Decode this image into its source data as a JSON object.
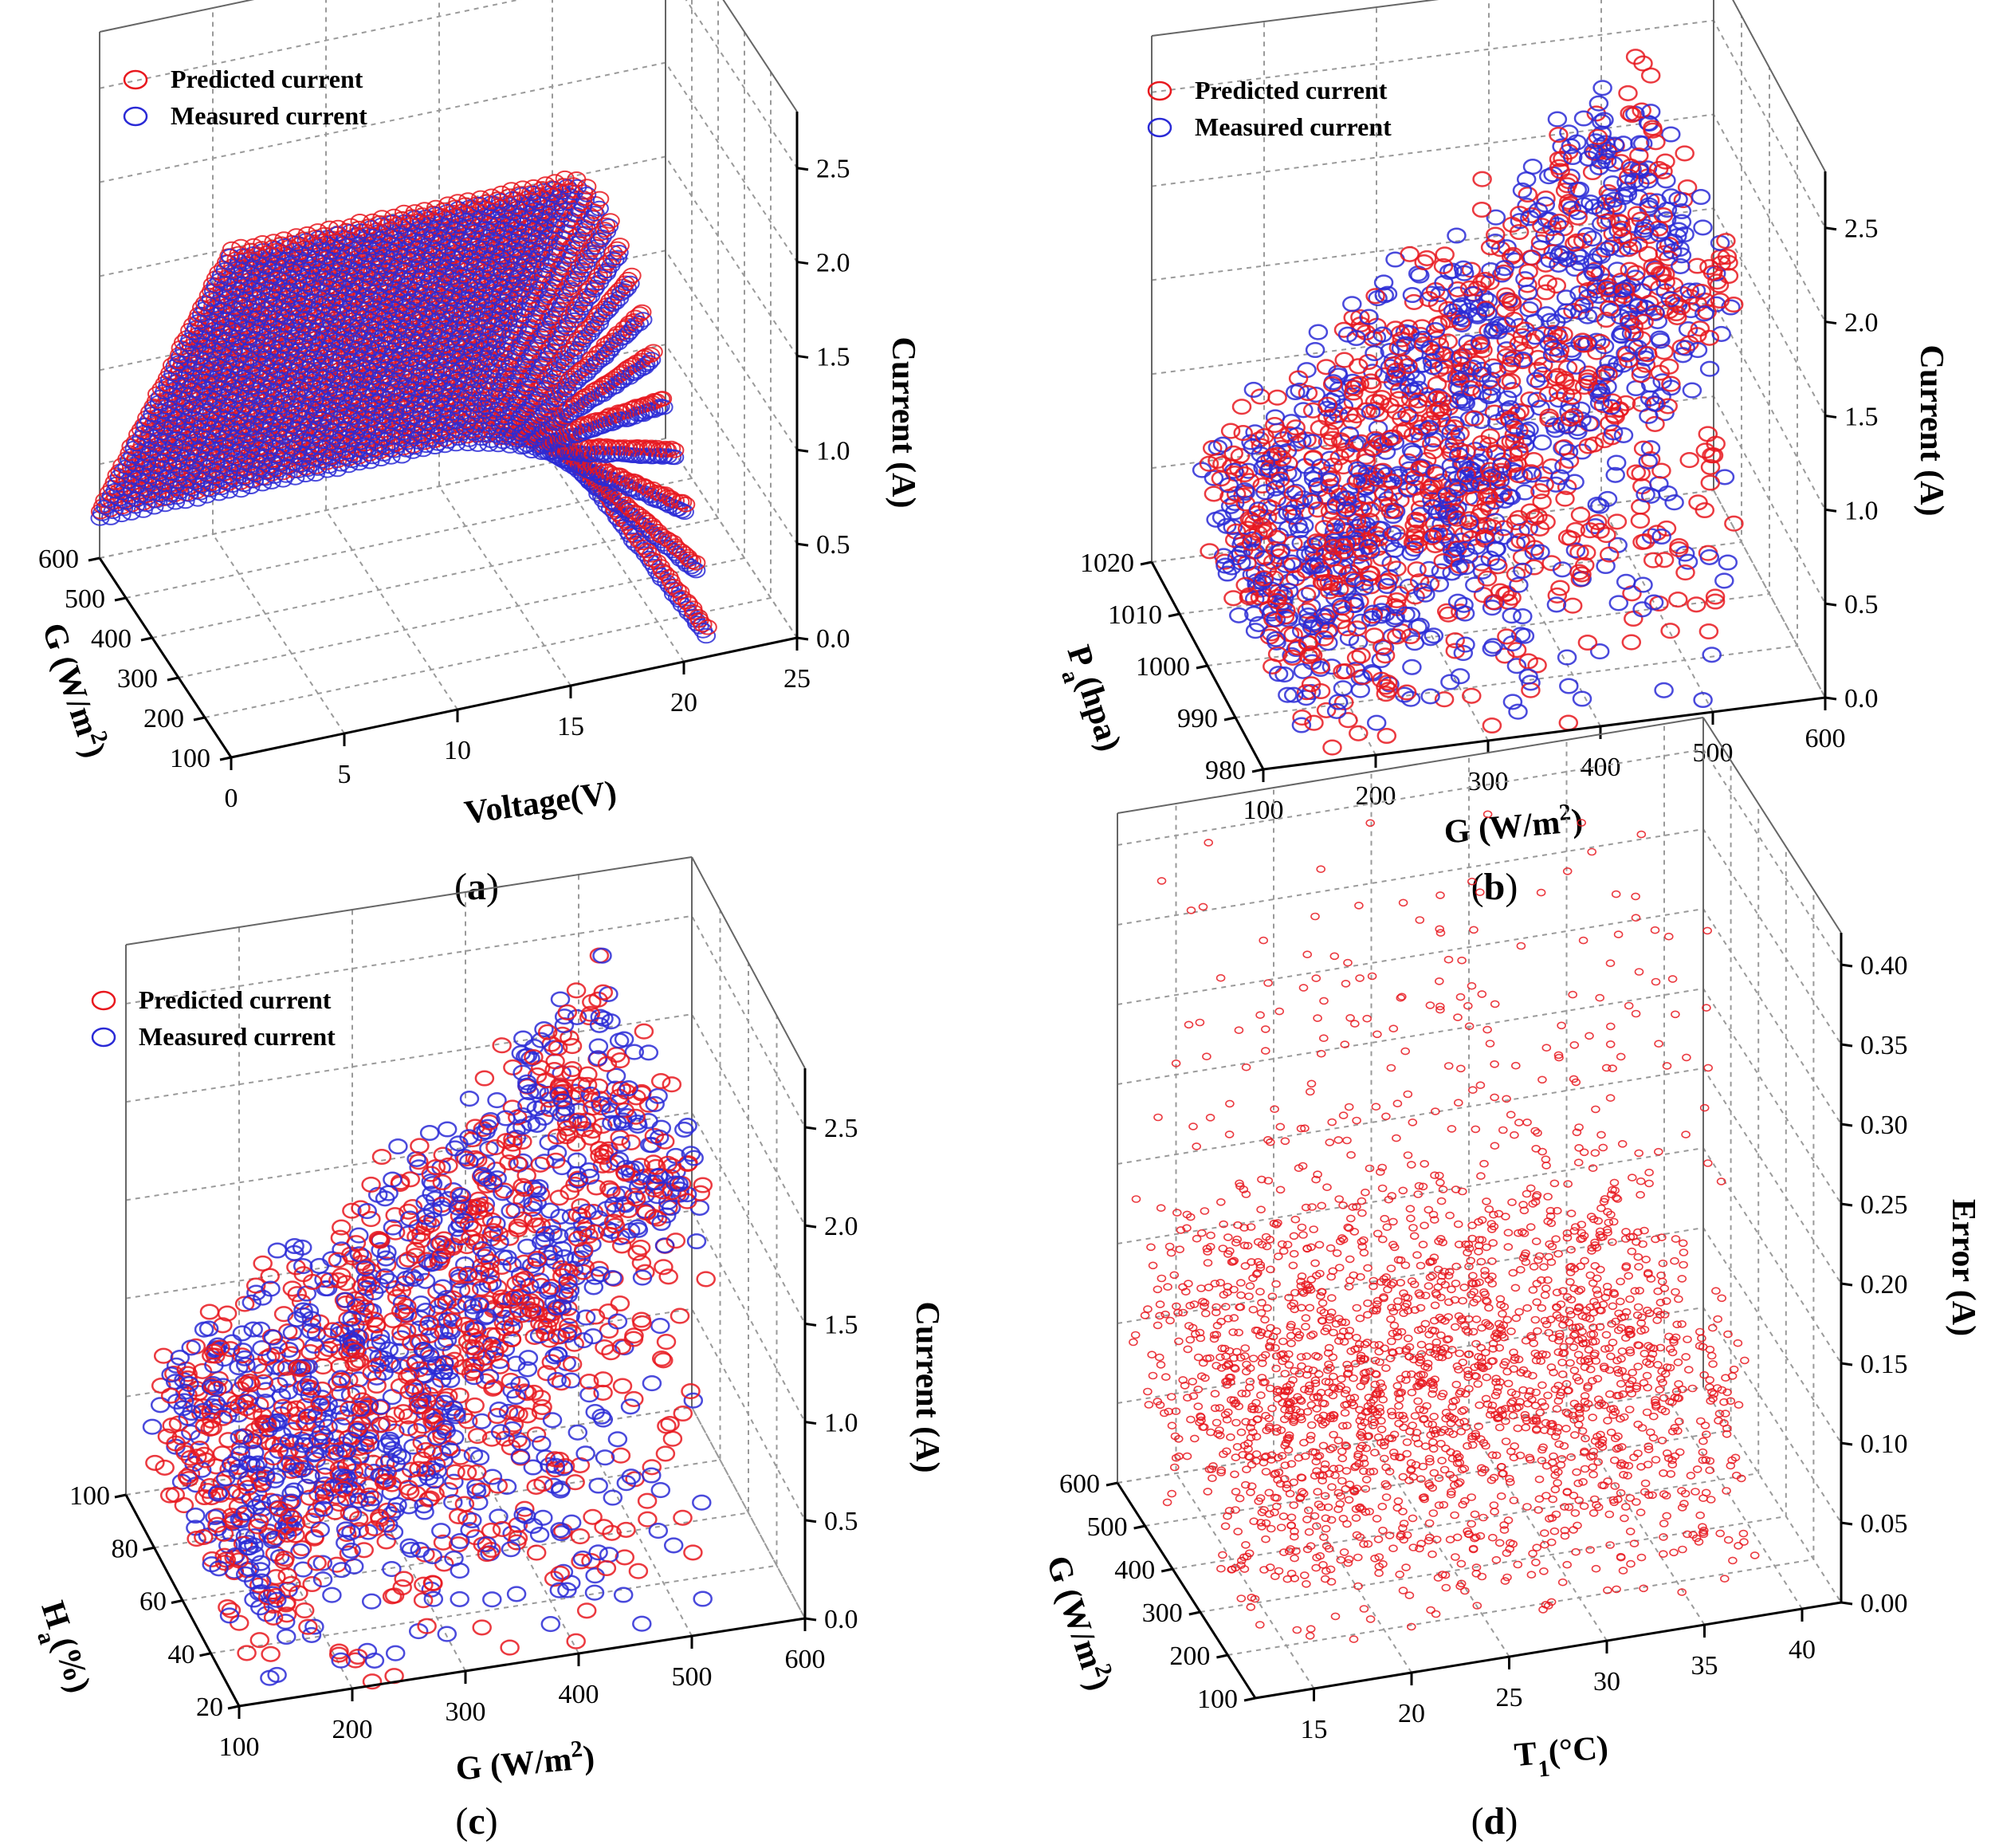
{
  "figure": {
    "colors": {
      "predicted": "#e8181e",
      "measured": "#2a2ad6",
      "axis": "#000000",
      "grid": "#9a9a9a"
    }
  },
  "chart_data": [
    {
      "type": "scatter",
      "subtype": "3d-scatter",
      "panel": "a",
      "caption_letter": "a",
      "x": {
        "label": "Voltage(V)",
        "range": [
          0,
          25
        ],
        "ticks": [
          "0",
          "5",
          "10",
          "15",
          "20",
          "25"
        ]
      },
      "y": {
        "label": "G (W/m",
        "label_sup": "2",
        "label_tail": ")",
        "range": [
          100,
          600
        ],
        "ticks": [
          "100",
          "200",
          "300",
          "400",
          "500",
          "600"
        ]
      },
      "z": {
        "label": "Current (A)",
        "range": [
          0,
          2.8
        ],
        "ticks": [
          "0.0",
          "0.5",
          "1.0",
          "1.5",
          "2.0",
          "2.5"
        ]
      },
      "legend": [
        "Predicted current",
        "Measured current"
      ],
      "series": [
        {
          "name": "Predicted current",
          "description_values": {
            "isc_at_100": 0.25,
            "isc_at_600": 2.7,
            "knee_voltage": 16,
            "voc": 21
          }
        },
        {
          "name": "Measured current",
          "description_values": {
            "isc_at_100": 0.22,
            "isc_at_600": 2.6,
            "knee_voltage": 16,
            "voc": 21
          }
        }
      ]
    },
    {
      "type": "scatter",
      "subtype": "3d-scatter",
      "panel": "b",
      "caption_letter": "b",
      "x": {
        "label": "G (W/m",
        "label_sup": "2",
        "label_tail": ")",
        "range": [
          100,
          600
        ],
        "ticks": [
          "100",
          "200",
          "300",
          "400",
          "500",
          "600"
        ]
      },
      "y": {
        "label": "P",
        "label_sub": "a",
        "label_tail": "(hpa)",
        "range": [
          980,
          1020
        ],
        "ticks": [
          "980",
          "990",
          "1000",
          "1010",
          "1020"
        ]
      },
      "z": {
        "label": "Current (A)",
        "range": [
          0,
          2.8
        ],
        "ticks": [
          "0.0",
          "0.5",
          "1.0",
          "1.5",
          "2.0",
          "2.5"
        ]
      },
      "legend": [
        "Predicted current",
        "Measured current"
      ],
      "series": [
        {
          "name": "Predicted current",
          "description_values": {
            "max_current": 2.8,
            "min_current": 0.0
          }
        },
        {
          "name": "Measured current",
          "description_values": {
            "max_current": 2.75,
            "min_current": 0.0
          }
        }
      ]
    },
    {
      "type": "scatter",
      "subtype": "3d-scatter",
      "panel": "c",
      "caption_letter": "c",
      "x": {
        "label": "G (W/m",
        "label_sup": "2",
        "label_tail": ")",
        "range": [
          100,
          600
        ],
        "ticks": [
          "100",
          "200",
          "300",
          "400",
          "500",
          "600"
        ]
      },
      "y": {
        "label": "H",
        "label_sub": "a",
        "label_tail": "(%)",
        "range": [
          20,
          100
        ],
        "ticks": [
          "20",
          "40",
          "60",
          "80",
          "100"
        ]
      },
      "z": {
        "label": "Current (A)",
        "range": [
          0,
          2.8
        ],
        "ticks": [
          "0.0",
          "0.5",
          "1.0",
          "1.5",
          "2.0",
          "2.5"
        ]
      },
      "legend": [
        "Predicted current",
        "Measured current"
      ],
      "series": [
        {
          "name": "Predicted current",
          "description_values": {
            "max_current": 2.8,
            "min_current": 0.0
          }
        },
        {
          "name": "Measured current",
          "description_values": {
            "max_current": 2.75,
            "min_current": 0.0
          }
        }
      ]
    },
    {
      "type": "scatter",
      "subtype": "3d-scatter",
      "panel": "d",
      "caption_letter": "d",
      "x": {
        "label": "T",
        "label_sub": "1",
        "label_tail": "(°C)",
        "range": [
          12,
          42
        ],
        "ticks": [
          "15",
          "20",
          "25",
          "30",
          "35",
          "40"
        ]
      },
      "y": {
        "label": "G (W/m",
        "label_sup": "2",
        "label_tail": ")",
        "range": [
          100,
          600
        ],
        "ticks": [
          "100",
          "200",
          "300",
          "400",
          "500",
          "600"
        ]
      },
      "z": {
        "label": "Error (A)",
        "range": [
          0,
          0.42
        ],
        "ticks": [
          "0.00",
          "0.05",
          "0.10",
          "0.15",
          "0.20",
          "0.25",
          "0.30",
          "0.35",
          "0.40"
        ]
      },
      "legend": [],
      "series": [
        {
          "name": "Error",
          "description_values": {
            "max_error": 0.4,
            "typical_error": 0.1
          }
        }
      ]
    }
  ]
}
